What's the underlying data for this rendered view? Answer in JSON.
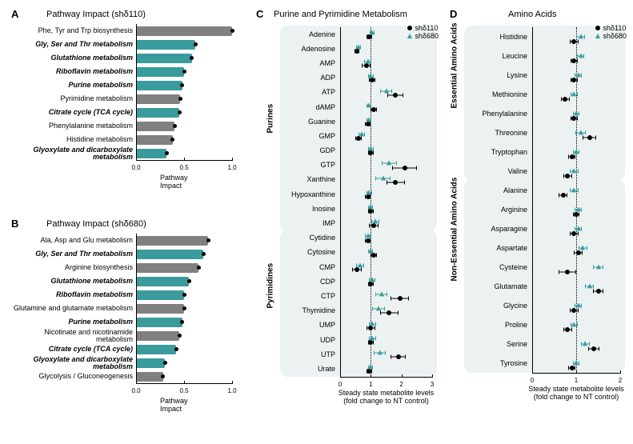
{
  "colors": {
    "bar_teal": "#3a9b9c",
    "bar_gray": "#808080",
    "dot_black": "#000000",
    "tri_teal": "#3a9b9c",
    "group_bg": "#ecf1f1"
  },
  "panelA": {
    "label": "A",
    "title": "Pathway Impact (shδ110)",
    "axis": "Pathway Impact",
    "xmax": 1.0,
    "ticks": [
      0.0,
      0.5,
      1.0
    ],
    "bars": [
      {
        "name": "Phe, Tyr and Trp biosynthesis",
        "val": 1.0,
        "hl": false,
        "bold": false
      },
      {
        "name": "Gly, Ser and Thr metabolism",
        "val": 0.62,
        "hl": true,
        "bold": true
      },
      {
        "name": "Glutathione metabolism",
        "val": 0.58,
        "hl": true,
        "bold": true
      },
      {
        "name": "Riboflavin metabolism",
        "val": 0.5,
        "hl": true,
        "bold": true
      },
      {
        "name": "Purine metabolism",
        "val": 0.48,
        "hl": true,
        "bold": true
      },
      {
        "name": "Pyrimidine metabolism",
        "val": 0.46,
        "hl": false,
        "bold": false
      },
      {
        "name": "Citrate cycle (TCA cycle)",
        "val": 0.45,
        "hl": true,
        "bold": true
      },
      {
        "name": "Phenylalanine metabolism",
        "val": 0.4,
        "hl": false,
        "bold": false
      },
      {
        "name": "Histidine metabolism",
        "val": 0.38,
        "hl": false,
        "bold": false
      },
      {
        "name": "Glyoxylate and dicarboxylate metabolism",
        "val": 0.32,
        "hl": true,
        "bold": true
      }
    ]
  },
  "panelB": {
    "label": "B",
    "title": "Pathway Impact (shδ680)",
    "axis": "Pathway Impact",
    "xmax": 1.0,
    "ticks": [
      0.0,
      0.5,
      1.0
    ],
    "bars": [
      {
        "name": "Ala, Asp and Glu metabolism",
        "val": 0.75,
        "hl": false,
        "bold": false
      },
      {
        "name": "Gly, Ser and Thr metabolism",
        "val": 0.7,
        "hl": true,
        "bold": true
      },
      {
        "name": "Arginine biosynthesis",
        "val": 0.65,
        "hl": false,
        "bold": false
      },
      {
        "name": "Glutathione metabolism",
        "val": 0.55,
        "hl": true,
        "bold": true
      },
      {
        "name": "Riboflavin metabolism",
        "val": 0.5,
        "hl": true,
        "bold": true
      },
      {
        "name": "Glutamine and glutamate metabolism",
        "val": 0.5,
        "hl": false,
        "bold": false
      },
      {
        "name": "Purine metabolism",
        "val": 0.48,
        "hl": true,
        "bold": true
      },
      {
        "name": "Nicotinate and nicotinamide metabolism",
        "val": 0.45,
        "hl": false,
        "bold": false
      },
      {
        "name": "Citrate cycle (TCA cycle)",
        "val": 0.42,
        "hl": true,
        "bold": true
      },
      {
        "name": "Glyoxylate and dicarboxylate metabolism",
        "val": 0.3,
        "hl": true,
        "bold": true
      },
      {
        "name": "Glycolysis / Gluconeogenesis",
        "val": 0.28,
        "hl": false,
        "bold": false
      }
    ]
  },
  "panelC": {
    "label": "C",
    "title": "Purine and Pyrimidine Metabolism",
    "axis": "Steady state metabolite levels\n(fold change to NT control)",
    "xmin": 0,
    "xmax": 3,
    "xdash": 1,
    "ticks": [
      0,
      1,
      2,
      3
    ],
    "legend": [
      {
        "marker": "circle",
        "text": "shδ110"
      },
      {
        "marker": "tri",
        "text": "shδ680"
      }
    ],
    "groups": [
      {
        "name": "Purines",
        "from": 0,
        "to": 13
      },
      {
        "name": "Pyrimidines",
        "from": 14,
        "to": 23
      }
    ],
    "rows": [
      {
        "name": "Adenine",
        "s1": 0.95,
        "e1": 0.1,
        "s2": 1.05,
        "e2": 0.08
      },
      {
        "name": "Adenosine",
        "s1": 0.55,
        "e1": 0.08,
        "s2": 0.6,
        "e2": 0.08
      },
      {
        "name": "AMP",
        "s1": 0.85,
        "e1": 0.15,
        "s2": 0.9,
        "e2": 0.12
      },
      {
        "name": "ADP",
        "s1": 1.05,
        "e1": 0.1,
        "s2": 1.0,
        "e2": 0.1
      },
      {
        "name": "ATP",
        "s1": 1.8,
        "e1": 0.25,
        "s2": 1.5,
        "e2": 0.2
      },
      {
        "name": "dAMP",
        "s1": 1.1,
        "e1": 0.1,
        "s2": 0.95,
        "e2": 0.08
      },
      {
        "name": "Guanine",
        "s1": 0.9,
        "e1": 0.1,
        "s2": 0.95,
        "e2": 0.08
      },
      {
        "name": "GMP",
        "s1": 0.6,
        "e1": 0.1,
        "s2": 0.7,
        "e2": 0.1
      },
      {
        "name": "GDP",
        "s1": 1.0,
        "e1": 0.1,
        "s2": 1.0,
        "e2": 0.1
      },
      {
        "name": "GTP",
        "s1": 2.1,
        "e1": 0.4,
        "s2": 1.6,
        "e2": 0.25
      },
      {
        "name": "Xanthine",
        "s1": 1.8,
        "e1": 0.3,
        "s2": 1.4,
        "e2": 0.25
      },
      {
        "name": "Hypoxanthine",
        "s1": 0.9,
        "e1": 0.1,
        "s2": 0.95,
        "e2": 0.1
      },
      {
        "name": "Inosine",
        "s1": 1.0,
        "e1": 0.1,
        "s2": 1.0,
        "e2": 0.08
      },
      {
        "name": "IMP",
        "s1": 1.1,
        "e1": 0.15,
        "s2": 1.15,
        "e2": 0.12
      },
      {
        "name": "Cytidine",
        "s1": 0.9,
        "e1": 0.1,
        "s2": 0.9,
        "e2": 0.08
      },
      {
        "name": "Cytosine",
        "s1": 1.1,
        "e1": 0.1,
        "s2": 1.0,
        "e2": 0.08
      },
      {
        "name": "CMP",
        "s1": 0.55,
        "e1": 0.15,
        "s2": 0.65,
        "e2": 0.12
      },
      {
        "name": "CDP",
        "s1": 1.0,
        "e1": 0.1,
        "s2": 1.05,
        "e2": 0.1
      },
      {
        "name": "CTP",
        "s1": 1.95,
        "e1": 0.3,
        "s2": 1.35,
        "e2": 0.2
      },
      {
        "name": "Thymidine",
        "s1": 1.6,
        "e1": 0.3,
        "s2": 1.25,
        "e2": 0.2
      },
      {
        "name": "UMP",
        "s1": 1.0,
        "e1": 0.15,
        "s2": 1.05,
        "e2": 0.12
      },
      {
        "name": "UDP",
        "s1": 1.0,
        "e1": 0.1,
        "s2": 1.05,
        "e2": 0.12
      },
      {
        "name": "UTP",
        "s1": 1.9,
        "e1": 0.25,
        "s2": 1.3,
        "e2": 0.2
      },
      {
        "name": "Urate",
        "s1": 0.95,
        "e1": 0.1,
        "s2": 1.0,
        "e2": 0.08
      }
    ]
  },
  "panelD": {
    "label": "D",
    "title": "Amino Acids",
    "axis": "Steady state metabolite levels\n(fold change to NT control)",
    "xmin": 0,
    "xmax": 2,
    "xdash": 1,
    "ticks": [
      0,
      1,
      2
    ],
    "legend": [
      {
        "marker": "circle",
        "text": "shδ110"
      },
      {
        "marker": "tri",
        "text": "shδ680"
      }
    ],
    "groups": [
      {
        "name": "Essential Amino Acids",
        "from": 0,
        "to": 7
      },
      {
        "name": "Non-Essential Amino Acids",
        "from": 8,
        "to": 17
      }
    ],
    "rows": [
      {
        "name": "Histidine",
        "s1": 0.95,
        "e1": 0.1,
        "s2": 1.1,
        "e2": 0.1
      },
      {
        "name": "Leucine",
        "s1": 0.95,
        "e1": 0.08,
        "s2": 1.1,
        "e2": 0.08
      },
      {
        "name": "Lysine",
        "s1": 0.95,
        "e1": 0.08,
        "s2": 1.05,
        "e2": 0.08
      },
      {
        "name": "Methionine",
        "s1": 0.75,
        "e1": 0.1,
        "s2": 0.95,
        "e2": 0.08
      },
      {
        "name": "Phenylalanine",
        "s1": 0.95,
        "e1": 0.08,
        "s2": 1.0,
        "e2": 0.08
      },
      {
        "name": "Threonine",
        "s1": 1.3,
        "e1": 0.15,
        "s2": 1.1,
        "e2": 0.12
      },
      {
        "name": "Tryptophan",
        "s1": 0.9,
        "e1": 0.08,
        "s2": 1.0,
        "e2": 0.08
      },
      {
        "name": "Valine",
        "s1": 0.8,
        "e1": 0.1,
        "s2": 0.95,
        "e2": 0.1
      },
      {
        "name": "Alanine",
        "s1": 0.7,
        "e1": 0.1,
        "s2": 0.95,
        "e2": 0.1
      },
      {
        "name": "Arginine",
        "s1": 1.0,
        "e1": 0.08,
        "s2": 1.05,
        "e2": 0.08
      },
      {
        "name": "Asparagine",
        "s1": 0.95,
        "e1": 0.1,
        "s2": 1.05,
        "e2": 0.08
      },
      {
        "name": "Aspartate",
        "s1": 1.05,
        "e1": 0.1,
        "s2": 1.15,
        "e2": 0.1
      },
      {
        "name": "Cysteine",
        "s1": 0.8,
        "e1": 0.2,
        "s2": 1.5,
        "e2": 0.12
      },
      {
        "name": "Glutamate",
        "s1": 1.5,
        "e1": 0.12,
        "s2": 1.3,
        "e2": 0.1
      },
      {
        "name": "Glycine",
        "s1": 0.95,
        "e1": 0.1,
        "s2": 1.05,
        "e2": 0.08
      },
      {
        "name": "Proline",
        "s1": 0.8,
        "e1": 0.1,
        "s2": 0.95,
        "e2": 0.08
      },
      {
        "name": "Serine",
        "s1": 1.4,
        "e1": 0.12,
        "s2": 1.2,
        "e2": 0.1
      },
      {
        "name": "Tyrosine",
        "s1": 0.9,
        "e1": 0.08,
        "s2": 1.0,
        "e2": 0.08
      }
    ]
  }
}
